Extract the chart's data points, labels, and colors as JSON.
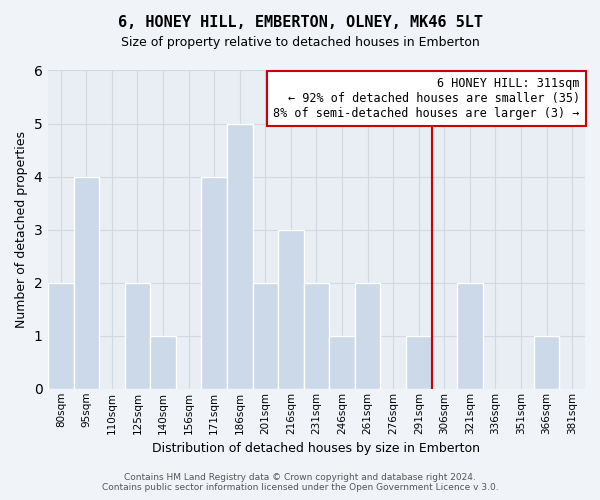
{
  "title": "6, HONEY HILL, EMBERTON, OLNEY, MK46 5LT",
  "subtitle": "Size of property relative to detached houses in Emberton",
  "xlabel": "Distribution of detached houses by size in Emberton",
  "ylabel": "Number of detached properties",
  "footer_line1": "Contains HM Land Registry data © Crown copyright and database right 2024.",
  "footer_line2": "Contains public sector information licensed under the Open Government Licence v 3.0.",
  "bar_labels": [
    "80sqm",
    "95sqm",
    "110sqm",
    "125sqm",
    "140sqm",
    "156sqm",
    "171sqm",
    "186sqm",
    "201sqm",
    "216sqm",
    "231sqm",
    "246sqm",
    "261sqm",
    "276sqm",
    "291sqm",
    "306sqm",
    "321sqm",
    "336sqm",
    "351sqm",
    "366sqm",
    "381sqm"
  ],
  "bar_heights": [
    2,
    4,
    0,
    2,
    1,
    0,
    4,
    5,
    2,
    3,
    2,
    1,
    2,
    0,
    1,
    0,
    2,
    0,
    0,
    1,
    0
  ],
  "bar_color": "#ccd9e8",
  "bar_edge_color": "#ffffff",
  "grid_color": "#d0d8e0",
  "vline_x_index": 15,
  "vline_color": "#cc0000",
  "annotation_title": "6 HONEY HILL: 311sqm",
  "annotation_line1": "← 92% of detached houses are smaller (35)",
  "annotation_line2": "8% of semi-detached houses are larger (3) →",
  "annotation_box_facecolor": "#ffffff",
  "annotation_box_edgecolor": "#cc0000",
  "ylim": [
    0,
    6
  ],
  "yticks": [
    0,
    1,
    2,
    3,
    4,
    5,
    6
  ],
  "background_color": "#f0f4f8",
  "plot_bg_color": "#e8eef4"
}
